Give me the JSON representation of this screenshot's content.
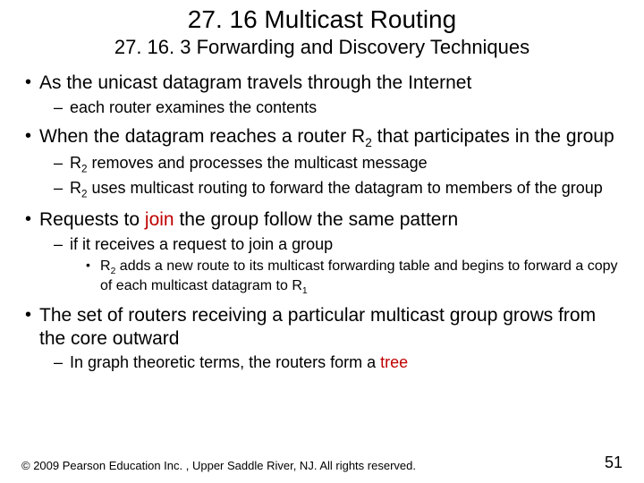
{
  "colors": {
    "bg": "#ffffff",
    "text": "#000000",
    "accent": "#c00000"
  },
  "title": "27. 16  Multicast Routing",
  "subtitle": "27. 16. 3  Forwarding and Discovery Techniques",
  "bullets": {
    "b1": "As the unicast datagram travels through the Internet",
    "b1a": "each router examines the contents",
    "b2_pre": "When the datagram reaches a router R",
    "b2_sub": "2",
    "b2_post": " that participates in the group",
    "b2a_pre": "R",
    "b2a_sub": "2",
    "b2a_post": " removes and processes the multicast message",
    "b2b_pre": "R",
    "b2b_sub": "2",
    "b2b_post": " uses multicast routing to forward the datagram to members of the group",
    "b3_pre": "Requests to ",
    "b3_accent": "join",
    "b3_post": " the group follow the same pattern",
    "b3a": "if it receives a request to join a group",
    "b3a1_pre": "R",
    "b3a1_sub1": "2",
    "b3a1_mid": " adds a new route to its multicast forwarding table and begins to forward a copy of each multicast datagram to R",
    "b3a1_sub2": "1",
    "b4": "The set of routers receiving a particular multicast group grows from the core outward",
    "b4a_pre": "In graph theoretic terms, the routers form a ",
    "b4a_accent": "tree"
  },
  "footer": {
    "copyright": "© 2009 Pearson Education Inc. , Upper Saddle River, NJ. All rights reserved.",
    "page": "51"
  }
}
